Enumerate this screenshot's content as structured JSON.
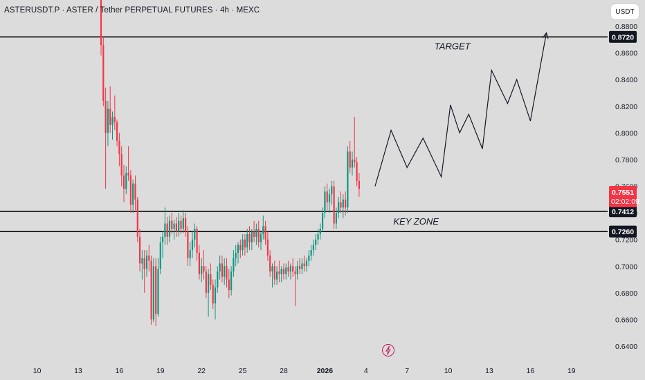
{
  "title": "ASTERUSDT.P · ASTER / Tether PERPETUAL FUTURES · 4h · MEXC",
  "currency_button": "USDT",
  "colors": {
    "up": "#089981",
    "down": "#f23645",
    "background": "#dcdcdc",
    "line": "#000000",
    "price_tag": "#f23645"
  },
  "icons": {
    "flash": "lightning-bolt-icon"
  },
  "chart_data": {
    "type": "candlestick",
    "symbol": "ASTERUSDT.P",
    "interval": "4h",
    "exchange": "MEXC",
    "ylim": [
      0.632,
      0.89
    ],
    "y_ticks": [
      "0.8800",
      "0.8600",
      "0.8400",
      "0.8200",
      "0.8000",
      "0.7800",
      "0.7600",
      "0.7400",
      "0.7200",
      "0.7000",
      "0.6800",
      "0.6600",
      "0.6400"
    ],
    "x_ticks": [
      "10",
      "13",
      "16",
      "19",
      "22",
      "25",
      "28",
      "2026",
      "4",
      "7",
      "10",
      "13",
      "16",
      "19"
    ],
    "x_tick_index": [
      -28,
      -10,
      8,
      26,
      44,
      62,
      80,
      98,
      116,
      134,
      152,
      170,
      188,
      206
    ],
    "current_price": {
      "value": 0.7551,
      "label": "0.7551",
      "countdown": "02:02:09"
    },
    "levels": [
      {
        "value": 0.872,
        "label": "0.8720",
        "annotation": "TARGET"
      },
      {
        "value": 0.7412,
        "label": "0.7412",
        "annotation": "KEY ZONE"
      },
      {
        "value": 0.726,
        "label": "0.7260",
        "annotation": ""
      }
    ],
    "projection": [
      {
        "i": 120,
        "v": 0.76
      },
      {
        "i": 127,
        "v": 0.802
      },
      {
        "i": 134,
        "v": 0.774
      },
      {
        "i": 141,
        "v": 0.796
      },
      {
        "i": 149,
        "v": 0.767
      },
      {
        "i": 153,
        "v": 0.821
      },
      {
        "i": 157,
        "v": 0.8
      },
      {
        "i": 161,
        "v": 0.814
      },
      {
        "i": 167,
        "v": 0.788
      },
      {
        "i": 171,
        "v": 0.847
      },
      {
        "i": 178,
        "v": 0.822
      },
      {
        "i": 182,
        "v": 0.84
      },
      {
        "i": 188,
        "v": 0.809
      },
      {
        "i": 195,
        "v": 0.875
      }
    ],
    "ohlc": [
      [
        0.902,
        0.904,
        0.858,
        0.866
      ],
      [
        0.866,
        0.872,
        0.82,
        0.824
      ],
      [
        0.824,
        0.834,
        0.758,
        0.8
      ],
      [
        0.8,
        0.824,
        0.79,
        0.818
      ],
      [
        0.818,
        0.835,
        0.8,
        0.806
      ],
      [
        0.806,
        0.816,
        0.795,
        0.812
      ],
      [
        0.812,
        0.828,
        0.802,
        0.808
      ],
      [
        0.808,
        0.81,
        0.79,
        0.794
      ],
      [
        0.794,
        0.8,
        0.775,
        0.784
      ],
      [
        0.784,
        0.79,
        0.76,
        0.768
      ],
      [
        0.768,
        0.776,
        0.748,
        0.758
      ],
      [
        0.758,
        0.775,
        0.754,
        0.77
      ],
      [
        0.77,
        0.79,
        0.764,
        0.768
      ],
      [
        0.768,
        0.772,
        0.74,
        0.746
      ],
      [
        0.746,
        0.765,
        0.74,
        0.762
      ],
      [
        0.762,
        0.768,
        0.742,
        0.75
      ],
      [
        0.75,
        0.752,
        0.718,
        0.722
      ],
      [
        0.722,
        0.728,
        0.696,
        0.702
      ],
      [
        0.702,
        0.712,
        0.69,
        0.706
      ],
      [
        0.706,
        0.712,
        0.68,
        0.698
      ],
      [
        0.698,
        0.712,
        0.692,
        0.708
      ],
      [
        0.708,
        0.716,
        0.696,
        0.704
      ],
      [
        0.704,
        0.708,
        0.656,
        0.66
      ],
      [
        0.66,
        0.706,
        0.658,
        0.7
      ],
      [
        0.7,
        0.706,
        0.655,
        0.664
      ],
      [
        0.664,
        0.706,
        0.662,
        0.698
      ],
      [
        0.698,
        0.722,
        0.694,
        0.718
      ],
      [
        0.718,
        0.726,
        0.706,
        0.722
      ],
      [
        0.722,
        0.744,
        0.716,
        0.732
      ],
      [
        0.732,
        0.737,
        0.716,
        0.722
      ],
      [
        0.722,
        0.738,
        0.718,
        0.734
      ],
      [
        0.734,
        0.74,
        0.724,
        0.728
      ],
      [
        0.728,
        0.735,
        0.72,
        0.732
      ],
      [
        0.732,
        0.737,
        0.722,
        0.726
      ],
      [
        0.726,
        0.74,
        0.722,
        0.734
      ],
      [
        0.734,
        0.738,
        0.724,
        0.728
      ],
      [
        0.728,
        0.742,
        0.725,
        0.736
      ],
      [
        0.736,
        0.74,
        0.722,
        0.726
      ],
      [
        0.726,
        0.73,
        0.7,
        0.706
      ],
      [
        0.706,
        0.718,
        0.7,
        0.712
      ],
      [
        0.712,
        0.726,
        0.706,
        0.72
      ],
      [
        0.72,
        0.732,
        0.714,
        0.728
      ],
      [
        0.728,
        0.73,
        0.704,
        0.71
      ],
      [
        0.71,
        0.716,
        0.69,
        0.694
      ],
      [
        0.694,
        0.706,
        0.688,
        0.7
      ],
      [
        0.7,
        0.712,
        0.69,
        0.696
      ],
      [
        0.696,
        0.7,
        0.676,
        0.68
      ],
      [
        0.68,
        0.698,
        0.662,
        0.694
      ],
      [
        0.694,
        0.702,
        0.682,
        0.686
      ],
      [
        0.686,
        0.69,
        0.668,
        0.672
      ],
      [
        0.672,
        0.69,
        0.66,
        0.684
      ],
      [
        0.684,
        0.7,
        0.68,
        0.696
      ],
      [
        0.696,
        0.708,
        0.69,
        0.702
      ],
      [
        0.702,
        0.708,
        0.688,
        0.692
      ],
      [
        0.692,
        0.706,
        0.686,
        0.7
      ],
      [
        0.7,
        0.706,
        0.684,
        0.69
      ],
      [
        0.69,
        0.698,
        0.676,
        0.682
      ],
      [
        0.682,
        0.7,
        0.678,
        0.696
      ],
      [
        0.696,
        0.712,
        0.692,
        0.706
      ],
      [
        0.706,
        0.716,
        0.7,
        0.71
      ],
      [
        0.71,
        0.718,
        0.702,
        0.716
      ],
      [
        0.716,
        0.72,
        0.706,
        0.712
      ],
      [
        0.712,
        0.724,
        0.708,
        0.72
      ],
      [
        0.72,
        0.724,
        0.708,
        0.714
      ],
      [
        0.714,
        0.728,
        0.71,
        0.724
      ],
      [
        0.724,
        0.73,
        0.712,
        0.718
      ],
      [
        0.718,
        0.728,
        0.712,
        0.726
      ],
      [
        0.726,
        0.734,
        0.718,
        0.722
      ],
      [
        0.722,
        0.732,
        0.716,
        0.728
      ],
      [
        0.728,
        0.734,
        0.714,
        0.718
      ],
      [
        0.718,
        0.726,
        0.712,
        0.724
      ],
      [
        0.724,
        0.738,
        0.72,
        0.73
      ],
      [
        0.73,
        0.734,
        0.716,
        0.72
      ],
      [
        0.72,
        0.726,
        0.704,
        0.708
      ],
      [
        0.708,
        0.712,
        0.692,
        0.696
      ],
      [
        0.696,
        0.702,
        0.684,
        0.7
      ],
      [
        0.7,
        0.704,
        0.686,
        0.69
      ],
      [
        0.69,
        0.7,
        0.686,
        0.696
      ],
      [
        0.696,
        0.704,
        0.688,
        0.694
      ],
      [
        0.694,
        0.7,
        0.688,
        0.698
      ],
      [
        0.698,
        0.702,
        0.69,
        0.694
      ],
      [
        0.694,
        0.702,
        0.69,
        0.699
      ],
      [
        0.699,
        0.704,
        0.692,
        0.696
      ],
      [
        0.696,
        0.702,
        0.69,
        0.7
      ],
      [
        0.7,
        0.706,
        0.692,
        0.696
      ],
      [
        0.696,
        0.7,
        0.67,
        0.694
      ],
      [
        0.694,
        0.704,
        0.69,
        0.7
      ],
      [
        0.7,
        0.706,
        0.694,
        0.698
      ],
      [
        0.698,
        0.706,
        0.694,
        0.702
      ],
      [
        0.702,
        0.708,
        0.696,
        0.7
      ],
      [
        0.7,
        0.706,
        0.696,
        0.704
      ],
      [
        0.704,
        0.712,
        0.7,
        0.708
      ],
      [
        0.708,
        0.716,
        0.704,
        0.712
      ],
      [
        0.712,
        0.72,
        0.708,
        0.716
      ],
      [
        0.716,
        0.724,
        0.712,
        0.72
      ],
      [
        0.72,
        0.728,
        0.716,
        0.724
      ],
      [
        0.724,
        0.732,
        0.72,
        0.728
      ],
      [
        0.728,
        0.744,
        0.726,
        0.74
      ],
      [
        0.74,
        0.76,
        0.736,
        0.756
      ],
      [
        0.756,
        0.762,
        0.742,
        0.748
      ],
      [
        0.748,
        0.758,
        0.74,
        0.754
      ],
      [
        0.754,
        0.764,
        0.746,
        0.76
      ],
      [
        0.76,
        0.764,
        0.728,
        0.732
      ],
      [
        0.732,
        0.744,
        0.728,
        0.74
      ],
      [
        0.74,
        0.752,
        0.736,
        0.748
      ],
      [
        0.748,
        0.756,
        0.74,
        0.744
      ],
      [
        0.744,
        0.754,
        0.736,
        0.75
      ],
      [
        0.75,
        0.756,
        0.738,
        0.744
      ],
      [
        0.744,
        0.79,
        0.74,
        0.786
      ],
      [
        0.786,
        0.794,
        0.77,
        0.774
      ],
      [
        0.774,
        0.786,
        0.768,
        0.78
      ],
      [
        0.78,
        0.812,
        0.774,
        0.778
      ],
      [
        0.778,
        0.782,
        0.76,
        0.764
      ],
      [
        0.764,
        0.77,
        0.752,
        0.758
      ]
    ]
  }
}
